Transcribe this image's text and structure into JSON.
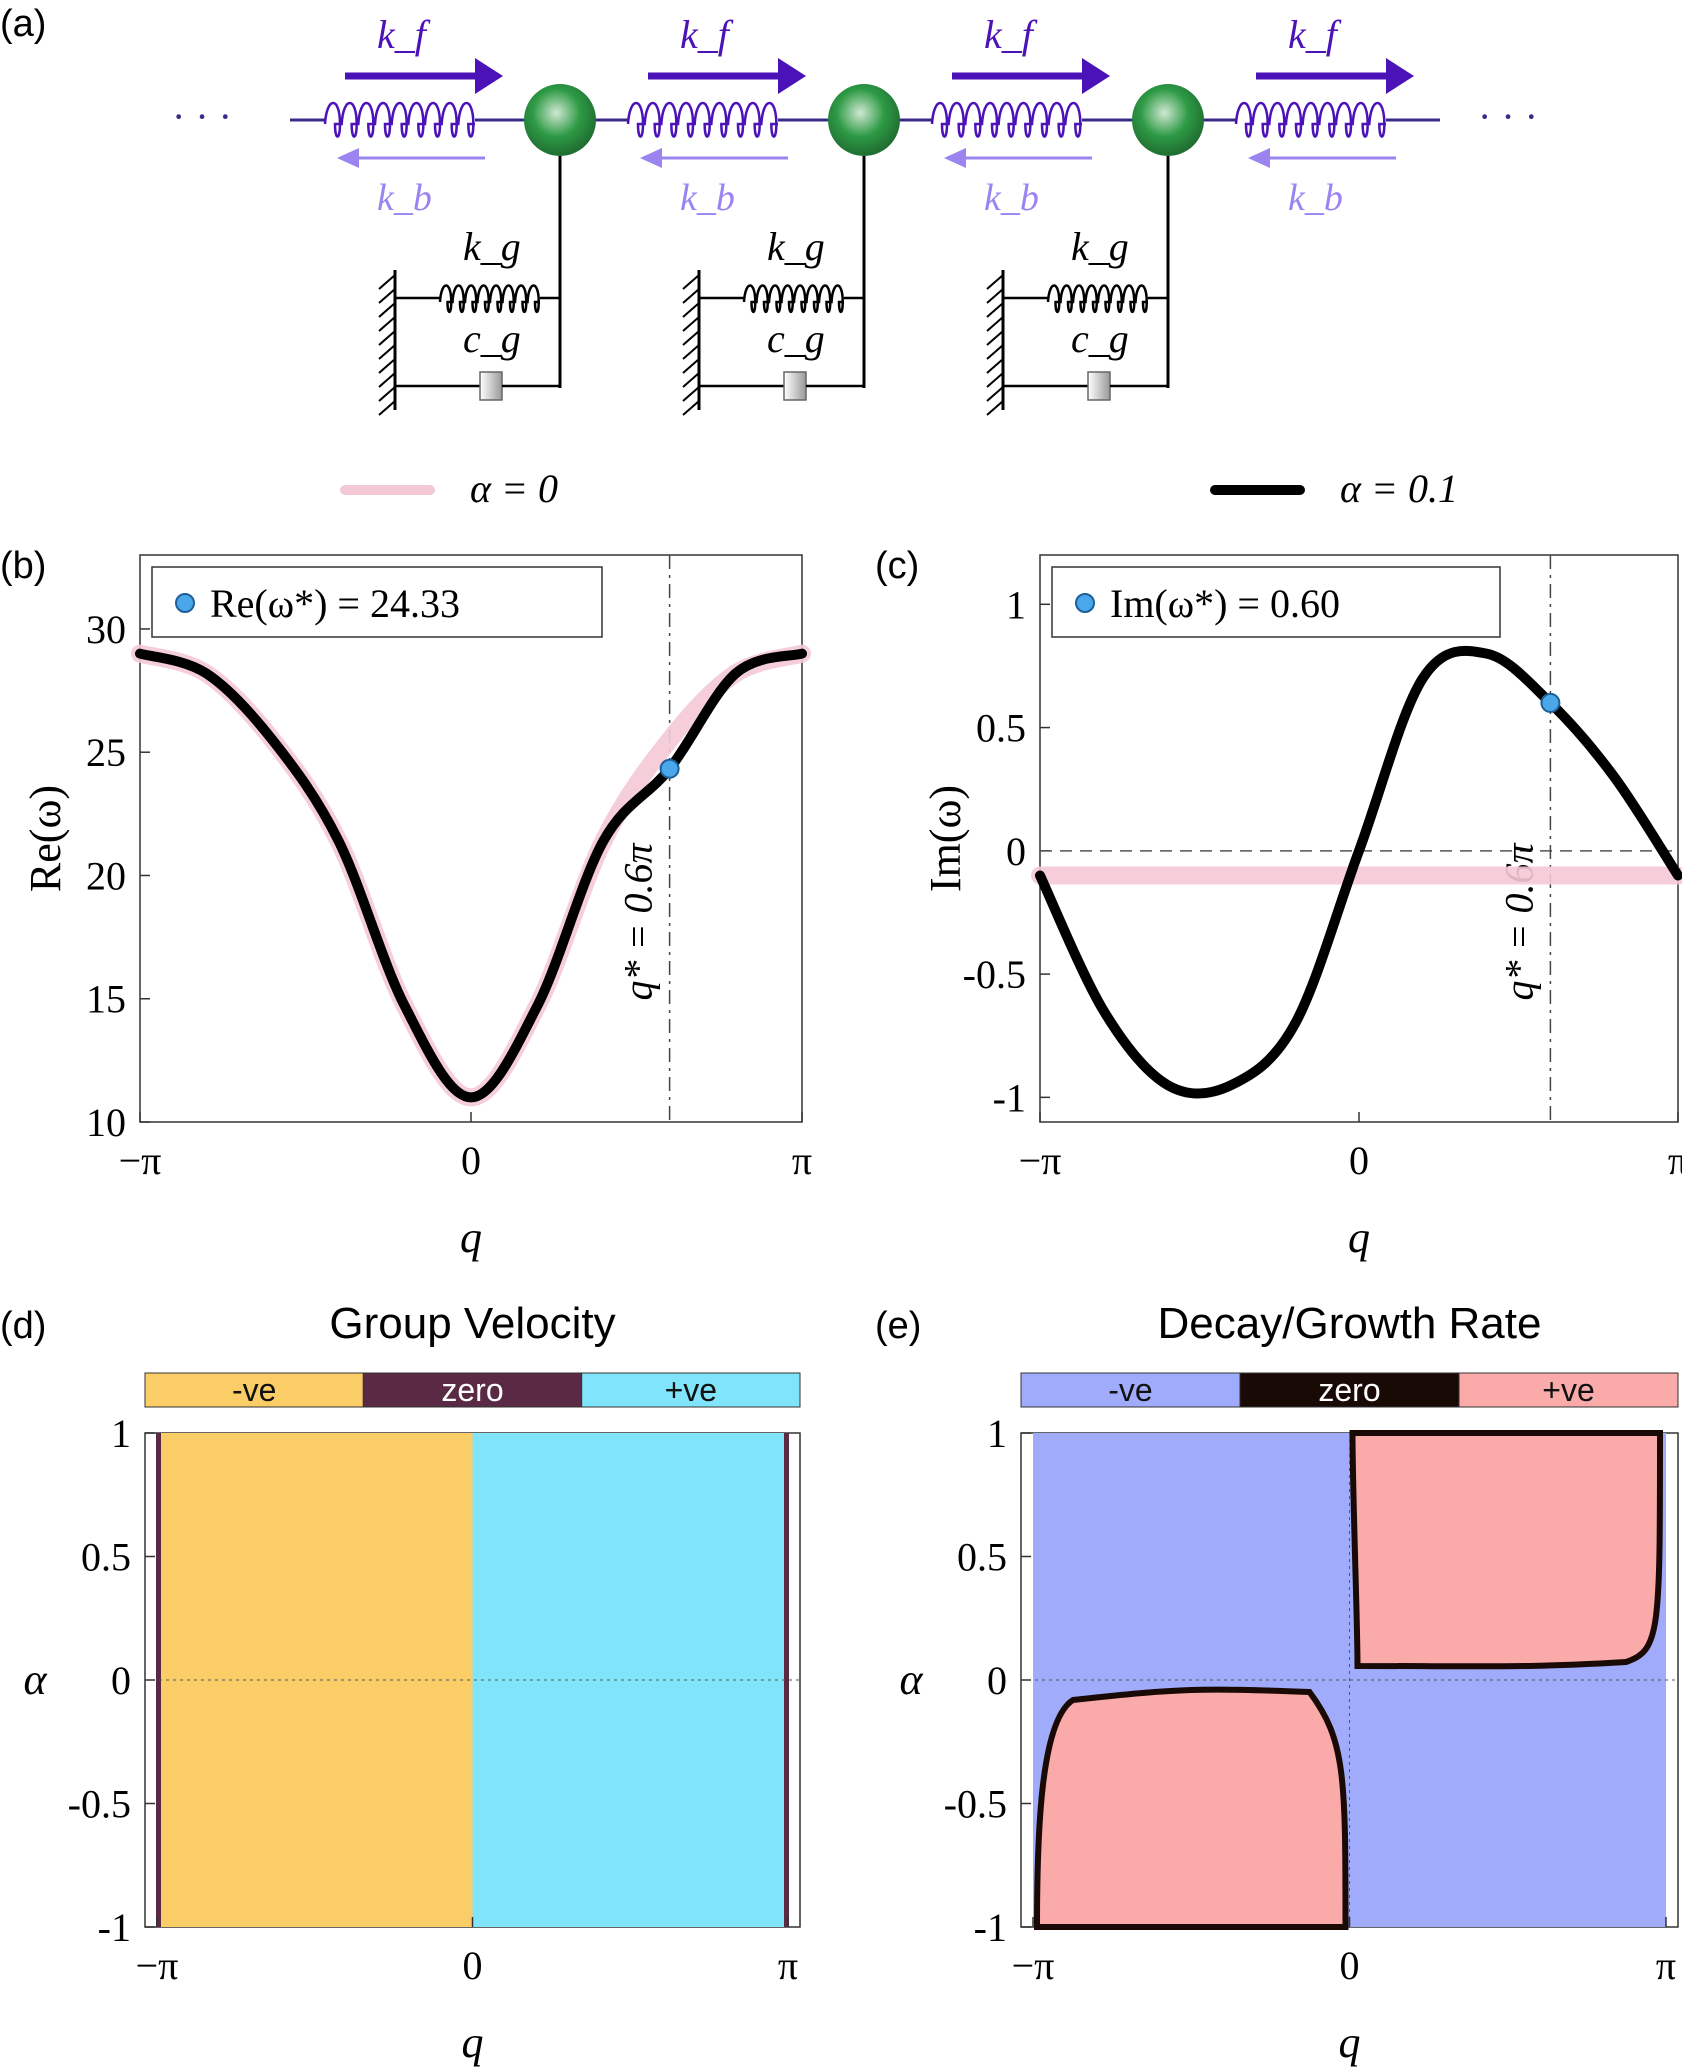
{
  "panel_labels": [
    "(a)",
    "(b)",
    "(c)",
    "(d)",
    "(e)"
  ],
  "schematic": {
    "forward_spring": "k_f",
    "backward_spring": "k_b",
    "ground_spring": "k_g",
    "ground_damper": "c_g",
    "ellipsis": "· · ·",
    "colors": {
      "forward": "#4b12b8",
      "backward": "#9b84f0",
      "mass": "#2e9a45",
      "line": "#3a2a8c"
    }
  },
  "legend": {
    "entries": [
      {
        "label": "α = 0",
        "color": "#f4c9d6"
      },
      {
        "label": "α = 0.1",
        "color": "#000000"
      }
    ]
  },
  "chart_data": [
    {
      "id": "b",
      "type": "line",
      "xlabel": "q",
      "ylabel": "Re(ω)",
      "xlim": [
        -3.14159,
        3.14159
      ],
      "ylim": [
        10,
        33
      ],
      "xticks": [
        "−π",
        "0",
        "π"
      ],
      "yticks": [
        "10",
        "15",
        "20",
        "25",
        "30"
      ],
      "series": [
        {
          "name": "α = 0",
          "x": [
            -3.1416,
            -2.5133,
            -1.885,
            -1.2566,
            -0.6283,
            0,
            0.6283,
            1.2566,
            1.885,
            2.5133,
            3.1416
          ],
          "y": [
            29.0,
            28.2,
            25.5,
            21.4,
            14.7,
            11.0,
            14.7,
            21.4,
            25.5,
            28.2,
            29.0
          ]
        },
        {
          "name": "α = 0.1",
          "x": [
            -3.1416,
            -2.5133,
            -1.885,
            -1.2566,
            -0.6283,
            0,
            0.6283,
            1.2566,
            1.885,
            2.5133,
            3.1416
          ],
          "y": [
            29.0,
            28.2,
            25.5,
            21.4,
            14.7,
            11.0,
            14.7,
            21.4,
            24.33,
            28.2,
            29.0
          ]
        }
      ],
      "marker": {
        "x": 1.885,
        "y": 24.33,
        "legend": "Re(ω*) = 24.33"
      },
      "vline": {
        "x": 1.885,
        "label": "q* = 0.6π"
      }
    },
    {
      "id": "c",
      "type": "line",
      "xlabel": "q",
      "ylabel": "Im(ω)",
      "xlim": [
        -3.14159,
        3.14159
      ],
      "ylim": [
        -1.1,
        1.2
      ],
      "xticks": [
        "−π",
        "0",
        "π"
      ],
      "yticks": [
        "1",
        "0.5",
        "0",
        "-0.5",
        "-1"
      ],
      "series": [
        {
          "name": "α = 0",
          "x": [
            -3.1416,
            3.1416
          ],
          "y": [
            -0.1,
            -0.1
          ]
        },
        {
          "name": "α = 0.1",
          "x": [
            -3.1416,
            -2.5133,
            -1.885,
            -1.2566,
            -0.6283,
            0,
            0.6283,
            1.2566,
            1.885,
            2.5133,
            3.1416
          ],
          "y": [
            -0.1,
            -0.65,
            -0.95,
            -0.95,
            -0.7,
            0,
            0.7,
            0.8,
            0.6,
            0.3,
            -0.1
          ]
        }
      ],
      "marker": {
        "x": 1.885,
        "y": 0.6,
        "legend": "Im(ω*) = 0.60"
      },
      "vline": {
        "x": 1.885,
        "label": "q* = 0.6π"
      },
      "hline": {
        "y": 0
      }
    },
    {
      "id": "d",
      "type": "heatmap",
      "title": "Group Velocity",
      "xlabel": "q",
      "ylabel": "α",
      "xlim": [
        -3.14159,
        3.14159
      ],
      "ylim": [
        -1,
        1
      ],
      "xticks": [
        "−π",
        "0",
        "π"
      ],
      "yticks": [
        "1",
        "0.5",
        "0",
        "-0.5",
        "-1"
      ],
      "colorbar": [
        {
          "label": "-ve",
          "color": "#fbcd66"
        },
        {
          "label": "zero",
          "color": "#5a2a45"
        },
        {
          "label": "+ve",
          "color": "#80e5fb"
        }
      ]
    },
    {
      "id": "e",
      "type": "heatmap",
      "title": "Decay/Growth Rate",
      "xlabel": "q",
      "ylabel": "α",
      "xlim": [
        -3.14159,
        3.14159
      ],
      "ylim": [
        -1,
        1
      ],
      "xticks": [
        "−π",
        "0",
        "π"
      ],
      "yticks": [
        "1",
        "0.5",
        "0",
        "-0.5",
        "-1"
      ],
      "colorbar": [
        {
          "label": "-ve",
          "color": "#a0acfb"
        },
        {
          "label": "zero",
          "color": "#1a0a06"
        },
        {
          "label": "+ve",
          "color": "#fbaaaa"
        }
      ]
    }
  ]
}
